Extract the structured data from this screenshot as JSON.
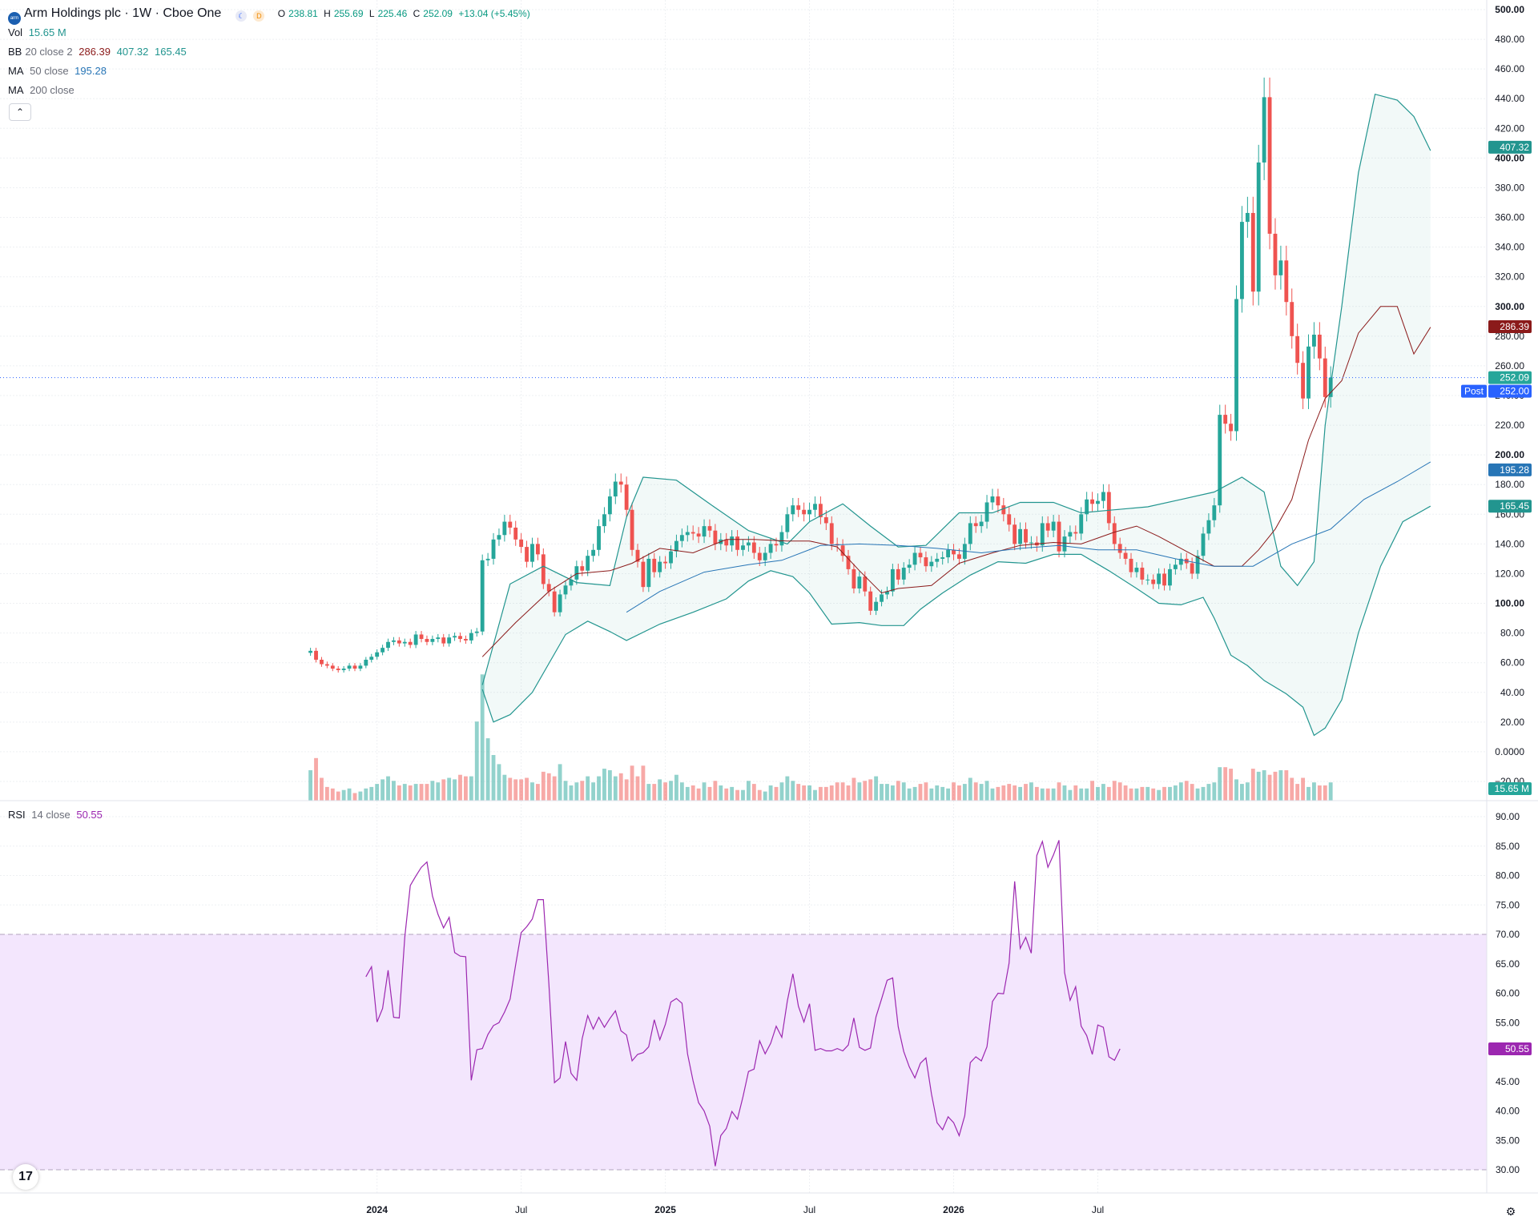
{
  "header": {
    "logo_text": "arm",
    "title": "Arm Holdings plc · 1W · Cboe One",
    "badge_d": "D",
    "ohlc": {
      "o_label": "O",
      "o": "238.81",
      "h_label": "H",
      "h": "255.69",
      "l_label": "L",
      "l": "225.46",
      "c_label": "C",
      "c": "252.09",
      "change": "+13.04 (+5.45%)"
    }
  },
  "indicators": {
    "vol": {
      "label": "Vol",
      "value": "15.65 M"
    },
    "bb": {
      "label": "BB",
      "params": "20 close 2",
      "basis": "286.39",
      "upper": "407.32",
      "lower": "165.45"
    },
    "ma50": {
      "label": "MA",
      "params": "50 close",
      "value": "195.28"
    },
    "ma200": {
      "label": "MA",
      "params": "200 close"
    },
    "rsi": {
      "label": "RSI",
      "params": "14 close",
      "value": "50.55"
    }
  },
  "colors": {
    "up": "#26a69a",
    "down": "#ef5350",
    "bb_band": "#22958f",
    "bb_basis": "#8b1a1a",
    "ma50": "#2775b6",
    "rsi": "#9c27b0",
    "rsi_zone": "#f3e6fd",
    "price_line": "#2962ff"
  },
  "price_axis": {
    "ticks": [
      "500.00",
      "480.00",
      "460.00",
      "440.00",
      "420.00",
      "400.00",
      "380.00",
      "360.00",
      "340.00",
      "320.00",
      "300.00",
      "280.00",
      "260.00",
      "240.00",
      "220.00",
      "200.00",
      "180.00",
      "160.00",
      "140.00",
      "120.00",
      "100.00",
      "80.00",
      "60.00",
      "40.00",
      "20.00",
      "0.0000",
      "−20.00"
    ],
    "tags": {
      "bb_upper": "407.32",
      "bb_basis": "286.39",
      "last": "252.09",
      "post": "252.00",
      "post_label": "Post",
      "ma50": "195.28",
      "bb_lower": "165.45",
      "volume": "15.65 M"
    }
  },
  "rsi_axis": {
    "ticks": [
      "90.00",
      "85.00",
      "80.00",
      "75.00",
      "70.00",
      "65.00",
      "60.00",
      "55.00",
      "50.00",
      "45.00",
      "40.00",
      "35.00",
      "30.00"
    ],
    "tag": "50.55"
  },
  "time_axis": {
    "labels": [
      "2024",
      "Jul",
      "2025",
      "Jul",
      "2026",
      "Jul"
    ],
    "bold": [
      true,
      false,
      true,
      false,
      true,
      false
    ]
  },
  "chart_data": {
    "type": "candlestick",
    "title": "Arm Holdings plc · 1W · Cboe One",
    "ylim": [
      -20,
      500
    ],
    "rsi_ylim": [
      30,
      90
    ],
    "rsi_bands": [
      30,
      70
    ],
    "x_range_weeks": [
      -56,
      212
    ],
    "candle_start_week": 0,
    "closes": [
      68.0,
      62.0,
      59.0,
      58.0,
      56.0,
      55.0,
      56.0,
      58.0,
      56.0,
      58.0,
      62.0,
      64.0,
      67.0,
      70.0,
      74.0,
      75.0,
      73.0,
      74.0,
      72.0,
      79.0,
      76.0,
      74.0,
      76.0,
      77.0,
      73.0,
      77.0,
      78.0,
      76.0,
      75.0,
      80.0,
      81.0,
      129.0,
      130.0,
      143.0,
      146.0,
      155.0,
      151.0,
      143.0,
      138.0,
      128.0,
      140.0,
      133.0,
      113.0,
      108.0,
      94.0,
      106.0,
      112.0,
      116.0,
      125.0,
      122.0,
      132.0,
      136.0,
      152.0,
      160.0,
      172.0,
      182.0,
      180.0,
      163.0,
      136.0,
      128.0,
      111.0,
      130.0,
      121.0,
      128.0,
      127.0,
      135.0,
      142.0,
      146.0,
      148.0,
      147.0,
      145.0,
      152.0,
      149.0,
      140.0,
      143.0,
      139.0,
      145.0,
      136.0,
      139.0,
      141.0,
      134.0,
      129.0,
      134.0,
      140.0,
      139.0,
      148.0,
      160.0,
      166.0,
      163.0,
      160.0,
      163.0,
      167.0,
      158.0,
      154.0,
      140.0,
      139.0,
      132.0,
      123.0,
      110.0,
      118.0,
      108.0,
      95.0,
      101.0,
      106.0,
      108.0,
      123.0,
      116.0,
      124.0,
      126.0,
      134.0,
      131.0,
      125.0,
      128.0,
      130.0,
      131.0,
      136.0,
      133.0,
      130.0,
      140.0,
      154.0,
      152.0,
      155.0,
      168.0,
      172.0,
      166.0,
      160.0,
      153.0,
      140.0,
      150.0,
      141.0,
      141.0,
      139.0,
      154.0,
      149.0,
      155.0,
      135.0,
      145.0,
      148.0,
      147.0,
      160.0,
      170.0,
      167.0,
      169.0,
      175.0,
      154.0,
      140.0,
      134.0,
      130.0,
      121.0,
      124.0,
      116.0,
      116.0,
      113.0,
      120.0,
      112.0,
      123.0,
      126.0,
      130.0,
      127.0,
      120.0,
      132.0,
      147.0,
      156.0,
      166.0,
      227.0,
      221.0,
      216.0,
      305.0,
      357.0,
      363.0,
      310.0,
      397.0,
      441.0,
      349.0,
      321.0,
      331.0,
      303.0,
      280.0,
      262.0,
      238.0,
      273.0,
      281.0,
      265.0,
      239.0,
      252.09
    ],
    "volumes_M": [
      20.0,
      28.0,
      15.0,
      9.0,
      8.0,
      6.0,
      7.0,
      8.0,
      5.0,
      6.0,
      8.0,
      9.0,
      11.0,
      14.0,
      16.0,
      13.0,
      10.0,
      11.0,
      10.0,
      11.0,
      11.0,
      11.0,
      13.0,
      12.0,
      14.0,
      15.0,
      14.0,
      17.0,
      16.0,
      16.0,
      52.0,
      83.0,
      41.0,
      30.0,
      24.0,
      17.0,
      15.0,
      14.0,
      14.0,
      15.0,
      12.0,
      11.0,
      19.0,
      18.0,
      16.0,
      24.0,
      13.0,
      10.0,
      12.0,
      13.0,
      16.0,
      12.0,
      16.0,
      21.0,
      20.0,
      16.0,
      18.0,
      14.0,
      23.0,
      16.0,
      23.0,
      11.0,
      11.0,
      14.0,
      12.0,
      13.0,
      17.0,
      12.0,
      9.0,
      10.0,
      8.0,
      12.0,
      9.0,
      13.0,
      10.0,
      8.0,
      9.0,
      7.0,
      7.0,
      13.0,
      11.0,
      7.0,
      6.0,
      10.0,
      9.0,
      12.0,
      16.0,
      13.0,
      11.0,
      10.0,
      10.0,
      7.0,
      9.0,
      9.0,
      10.0,
      12.0,
      12.0,
      10.0,
      15.0,
      12.0,
      13.0,
      14.0,
      16.0,
      11.0,
      11.0,
      10.0,
      13.0,
      12.0,
      8.0,
      9.0,
      11.0,
      12.0,
      8.0,
      10.0,
      9.0,
      8.0,
      12.0,
      10.0,
      11.0,
      15.0,
      12.0,
      11.0,
      13.0,
      8.0,
      9.0,
      10.0,
      11.0,
      10.0,
      9.0,
      11.0,
      12.0,
      9.0,
      8.0,
      8.0,
      8.0,
      12.0,
      10.0,
      7.0,
      10.0,
      8.0,
      8.0,
      13.0,
      9.0,
      11.0,
      9.0,
      13.0,
      12.0,
      10.0,
      8.0,
      8.0,
      9.0,
      9.0,
      8.0,
      7.0,
      9.0,
      9.0,
      10.0,
      12.0,
      13.0,
      11.0,
      8.0,
      9.0,
      11.0,
      12.0,
      22.0,
      22.0,
      21.0,
      14.0,
      11.0,
      12.0,
      21.0,
      19.0,
      20.0,
      17.0,
      19.0,
      20.0,
      20.0,
      15.0,
      11.0,
      15.0,
      9.0,
      12.0,
      10.0,
      10.0,
      12.0,
      14.0,
      15.65
    ],
    "bb_upper": [
      [
        31,
        45
      ],
      [
        36,
        113
      ],
      [
        42,
        125
      ],
      [
        48,
        114
      ],
      [
        54,
        112
      ],
      [
        57,
        158
      ],
      [
        60,
        185
      ],
      [
        66,
        183
      ],
      [
        72,
        167
      ],
      [
        79,
        149
      ],
      [
        86,
        140
      ],
      [
        90,
        155
      ],
      [
        96,
        167
      ],
      [
        101,
        152
      ],
      [
        106,
        138
      ],
      [
        111,
        139
      ],
      [
        117,
        161
      ],
      [
        123,
        161
      ],
      [
        128,
        168
      ],
      [
        134,
        168
      ],
      [
        139,
        161
      ],
      [
        145,
        163
      ],
      [
        151,
        165
      ],
      [
        157,
        170
      ],
      [
        163,
        175
      ],
      [
        168,
        185
      ],
      [
        172,
        175
      ],
      [
        175,
        125
      ],
      [
        178,
        112
      ],
      [
        181,
        128
      ],
      [
        183,
        220
      ],
      [
        186,
        300
      ],
      [
        189,
        390
      ],
      [
        192,
        443
      ],
      [
        196,
        439
      ],
      [
        199,
        428
      ],
      [
        202,
        405
      ]
    ],
    "bb_basis": [
      [
        31,
        64
      ],
      [
        37,
        87
      ],
      [
        43,
        108
      ],
      [
        48,
        120
      ],
      [
        54,
        122
      ],
      [
        58,
        127
      ],
      [
        63,
        137
      ],
      [
        69,
        134
      ],
      [
        75,
        143
      ],
      [
        80,
        143
      ],
      [
        86,
        142
      ],
      [
        90,
        142
      ],
      [
        95,
        138
      ],
      [
        99,
        122
      ],
      [
        103,
        107
      ],
      [
        106,
        110
      ],
      [
        112,
        112
      ],
      [
        117,
        127
      ],
      [
        123,
        134
      ],
      [
        128,
        139
      ],
      [
        134,
        141
      ],
      [
        139,
        140
      ],
      [
        145,
        148
      ],
      [
        149,
        152
      ],
      [
        153,
        145
      ],
      [
        158,
        135
      ],
      [
        163,
        125
      ],
      [
        168,
        125
      ],
      [
        171,
        136
      ],
      [
        174,
        150
      ],
      [
        177,
        170
      ],
      [
        180,
        210
      ],
      [
        183,
        238
      ],
      [
        186,
        250
      ],
      [
        189,
        282
      ],
      [
        193,
        300
      ],
      [
        196,
        300
      ],
      [
        199,
        268
      ],
      [
        202,
        286
      ]
    ],
    "bb_lower": [
      [
        31,
        42
      ],
      [
        33,
        20
      ],
      [
        36,
        25
      ],
      [
        40,
        40
      ],
      [
        46,
        79
      ],
      [
        50,
        88
      ],
      [
        54,
        81
      ],
      [
        57,
        75
      ],
      [
        63,
        86
      ],
      [
        69,
        94
      ],
      [
        75,
        103
      ],
      [
        79,
        115
      ],
      [
        83,
        122
      ],
      [
        87,
        118
      ],
      [
        90,
        107
      ],
      [
        94,
        86
      ],
      [
        99,
        87
      ],
      [
        103,
        85
      ],
      [
        107,
        85
      ],
      [
        110,
        96
      ],
      [
        114,
        107
      ],
      [
        119,
        119
      ],
      [
        124,
        128
      ],
      [
        129,
        127
      ],
      [
        134,
        133
      ],
      [
        139,
        133
      ],
      [
        144,
        122
      ],
      [
        149,
        110
      ],
      [
        153,
        100
      ],
      [
        157,
        99
      ],
      [
        161,
        104
      ],
      [
        163,
        90
      ],
      [
        166,
        65
      ],
      [
        169,
        58
      ],
      [
        172,
        48
      ],
      [
        176,
        39
      ],
      [
        179,
        30
      ],
      [
        181,
        11
      ],
      [
        183,
        16
      ],
      [
        186,
        35
      ],
      [
        189,
        80
      ],
      [
        193,
        125
      ],
      [
        197,
        155
      ],
      [
        202,
        165.45
      ]
    ],
    "ma50": [
      [
        57,
        94
      ],
      [
        63,
        108
      ],
      [
        71,
        121
      ],
      [
        79,
        126
      ],
      [
        85,
        129
      ],
      [
        92,
        139
      ],
      [
        99,
        140
      ],
      [
        106,
        139
      ],
      [
        113,
        137
      ],
      [
        121,
        134
      ],
      [
        128,
        137
      ],
      [
        135,
        139
      ],
      [
        142,
        136
      ],
      [
        149,
        136
      ],
      [
        156,
        130
      ],
      [
        163,
        125
      ],
      [
        170,
        125
      ],
      [
        177,
        140
      ],
      [
        184,
        150
      ],
      [
        190,
        170
      ],
      [
        196,
        182
      ],
      [
        202,
        195.28
      ]
    ],
    "rsi": [
      [
        10,
        62.8
      ],
      [
        11,
        64.5
      ],
      [
        12,
        55.1
      ],
      [
        13,
        57.4
      ],
      [
        14,
        63.9
      ],
      [
        15,
        55.9
      ],
      [
        16,
        55.8
      ],
      [
        17,
        69.5
      ],
      [
        18,
        78.3
      ],
      [
        19,
        79.9
      ],
      [
        20,
        81.4
      ],
      [
        21,
        82.3
      ],
      [
        22,
        76.5
      ],
      [
        23,
        73.4
      ],
      [
        24,
        71.1
      ],
      [
        25,
        72.9
      ],
      [
        26,
        66.9
      ],
      [
        27,
        66.3
      ],
      [
        28,
        66.2
      ],
      [
        29,
        45.2
      ],
      [
        30,
        50.4
      ],
      [
        31,
        50.6
      ],
      [
        32,
        53.0
      ],
      [
        33,
        54.5
      ],
      [
        34,
        55.0
      ],
      [
        35,
        56.8
      ],
      [
        36,
        59.0
      ],
      [
        37,
        64.8
      ],
      [
        38,
        70.3
      ],
      [
        39,
        71.3
      ],
      [
        40,
        72.6
      ],
      [
        41,
        75.9
      ],
      [
        42,
        75.9
      ],
      [
        43,
        61.6
      ],
      [
        44,
        44.8
      ],
      [
        45,
        45.6
      ],
      [
        46,
        51.8
      ],
      [
        47,
        46.4
      ],
      [
        48,
        45.2
      ],
      [
        49,
        52.3
      ],
      [
        50,
        56.2
      ],
      [
        51,
        53.9
      ],
      [
        52,
        55.9
      ],
      [
        53,
        54.2
      ],
      [
        54,
        55.7
      ],
      [
        55,
        57.0
      ],
      [
        56,
        53.6
      ],
      [
        57,
        52.9
      ],
      [
        58,
        48.5
      ],
      [
        59,
        49.6
      ],
      [
        60,
        49.9
      ],
      [
        61,
        50.9
      ],
      [
        62,
        55.5
      ],
      [
        63,
        52.1
      ],
      [
        64,
        54.7
      ],
      [
        65,
        58.5
      ],
      [
        66,
        59.1
      ],
      [
        67,
        58.3
      ],
      [
        68,
        49.7
      ],
      [
        69,
        45.1
      ],
      [
        70,
        41.4
      ],
      [
        71,
        40.0
      ],
      [
        72,
        37.4
      ],
      [
        73,
        30.6
      ],
      [
        74,
        35.8
      ],
      [
        75,
        37.0
      ],
      [
        76,
        39.9
      ],
      [
        77,
        38.6
      ],
      [
        78,
        42.4
      ],
      [
        79,
        46.7
      ],
      [
        80,
        47.1
      ],
      [
        81,
        51.9
      ],
      [
        82,
        49.7
      ],
      [
        83,
        51.5
      ],
      [
        84,
        54.4
      ],
      [
        85,
        52.5
      ],
      [
        86,
        58.7
      ],
      [
        87,
        63.3
      ],
      [
        88,
        57.8
      ],
      [
        89,
        55.1
      ],
      [
        90,
        58.2
      ],
      [
        91,
        50.3
      ],
      [
        92,
        50.6
      ],
      [
        93,
        50.2
      ],
      [
        94,
        50.2
      ],
      [
        95,
        50.6
      ],
      [
        96,
        50.2
      ],
      [
        97,
        51.2
      ],
      [
        98,
        55.8
      ],
      [
        99,
        50.8
      ],
      [
        100,
        50.3
      ],
      [
        101,
        50.7
      ],
      [
        102,
        56.0
      ],
      [
        103,
        59.0
      ],
      [
        104,
        62.2
      ],
      [
        105,
        62.6
      ],
      [
        106,
        54.3
      ],
      [
        107,
        50.1
      ],
      [
        108,
        47.5
      ],
      [
        109,
        45.6
      ],
      [
        110,
        48.1
      ],
      [
        111,
        49.0
      ],
      [
        112,
        42.9
      ],
      [
        113,
        38.0
      ],
      [
        114,
        36.8
      ],
      [
        115,
        39.0
      ],
      [
        116,
        38.0
      ],
      [
        117,
        35.8
      ],
      [
        118,
        39.2
      ],
      [
        119,
        48.2
      ],
      [
        120,
        49.2
      ],
      [
        121,
        48.5
      ],
      [
        122,
        50.9
      ],
      [
        123,
        58.6
      ],
      [
        124,
        60.0
      ],
      [
        125,
        59.9
      ],
      [
        126,
        65.1
      ],
      [
        127,
        79.0
      ],
      [
        128,
        67.6
      ],
      [
        129,
        69.5
      ],
      [
        130,
        66.8
      ],
      [
        131,
        83.4
      ],
      [
        132,
        85.8
      ],
      [
        133,
        81.4
      ],
      [
        134,
        83.5
      ],
      [
        135,
        86.0
      ],
      [
        136,
        63.5
      ],
      [
        137,
        58.8
      ],
      [
        138,
        61.1
      ],
      [
        139,
        54.4
      ],
      [
        140,
        52.8
      ],
      [
        141,
        49.6
      ],
      [
        142,
        54.6
      ],
      [
        143,
        54.2
      ],
      [
        144,
        49.2
      ],
      [
        145,
        48.6
      ],
      [
        146,
        50.55
      ]
    ]
  }
}
